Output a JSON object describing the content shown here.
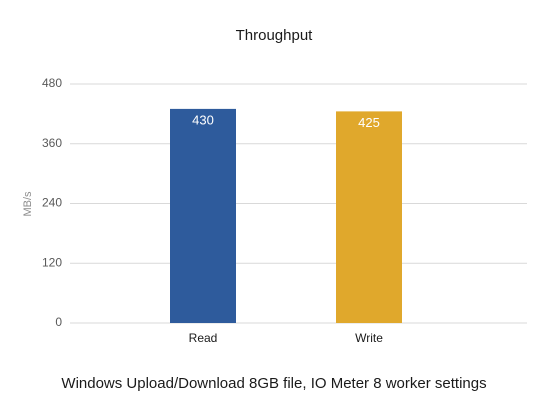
{
  "chart_data": {
    "type": "bar",
    "title": "Throughput",
    "y_label": "MB/s",
    "x_label": "Windows Upload/Download 8GB file, IO Meter 8 worker settings",
    "categories": [
      "Read",
      "Write"
    ],
    "values": [
      430,
      425
    ],
    "colors": [
      "#2e5b9c",
      "#e0a82c"
    ],
    "ylim": [
      0,
      480
    ],
    "yticks": [
      0,
      120,
      240,
      360,
      480
    ],
    "grid": true,
    "data_labels": true
  }
}
